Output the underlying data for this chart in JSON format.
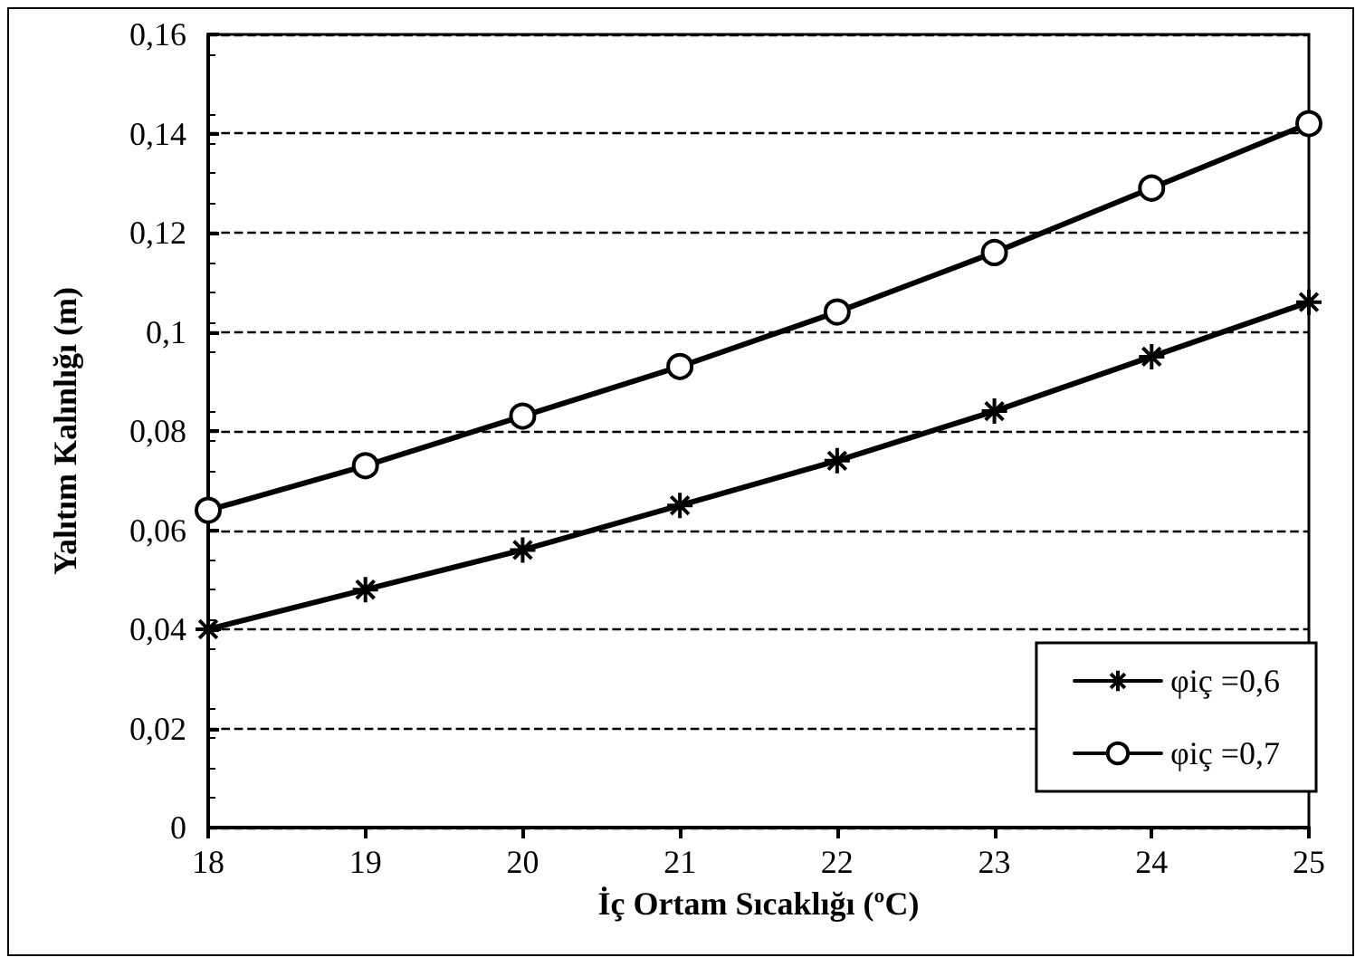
{
  "chart_data": {
    "type": "line",
    "xlabel": "İç Ortam Sıcaklığı (ºC)",
    "ylabel": "Yalıtım Kalınlığı (m)",
    "x": [
      18,
      19,
      20,
      21,
      22,
      23,
      24,
      25
    ],
    "series": [
      {
        "name": "φiç =0,6",
        "color": "#000000",
        "marker": "cross",
        "values": [
          0.04,
          0.048,
          0.056,
          0.065,
          0.074,
          0.084,
          0.095,
          0.106
        ]
      },
      {
        "name": "φiç =0,7",
        "color": "#000000",
        "marker": "circle",
        "values": [
          0.064,
          0.073,
          0.083,
          0.093,
          0.104,
          0.116,
          0.129,
          0.142
        ]
      }
    ],
    "xlim": [
      18,
      25
    ],
    "xticks": [
      18,
      19,
      20,
      21,
      22,
      23,
      24,
      25
    ],
    "ylim": [
      0,
      0.16
    ],
    "yticks": [
      {
        "value": 0,
        "label": "0"
      },
      {
        "value": 0.02,
        "label": "0,02"
      },
      {
        "value": 0.04,
        "label": "0,04"
      },
      {
        "value": 0.06,
        "label": "0,06"
      },
      {
        "value": 0.08,
        "label": "0,08"
      },
      {
        "value": 0.1,
        "label": "0,1"
      },
      {
        "value": 0.12,
        "label": "0,12"
      },
      {
        "value": 0.14,
        "label": "0,14"
      },
      {
        "value": 0.16,
        "label": "0,16"
      }
    ],
    "grid": "y",
    "legend": "bottom right",
    "line_style": "solid"
  }
}
